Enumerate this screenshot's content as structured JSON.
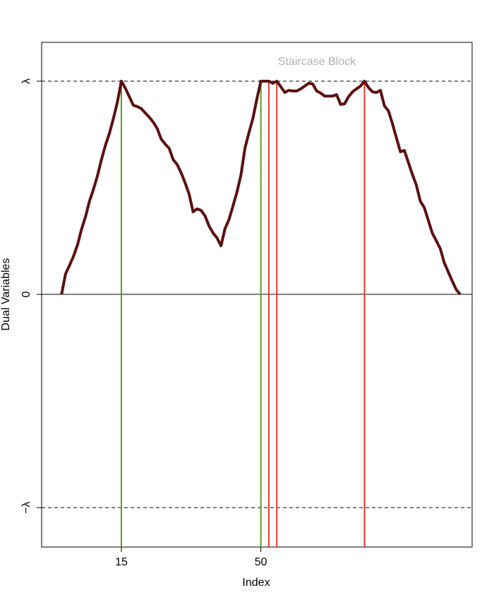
{
  "chart_data": {
    "type": "line",
    "annotation": "Staircase Block",
    "x_label": "Index",
    "y_label": "Dual Variables",
    "xlim": [
      -5,
      103
    ],
    "ylim": [
      -1.185,
      1.182
    ],
    "xticks": [
      15,
      50
    ],
    "yticks": [
      {
        "value": -1,
        "label": "−λ"
      },
      0,
      {
        "value": 1,
        "label": "λ"
      }
    ],
    "hlines": [
      {
        "y": 1,
        "style": "dashed"
      },
      {
        "y": 0,
        "style": "solid"
      },
      {
        "y": -1,
        "style": "dashed"
      }
    ],
    "vlines": [
      {
        "x": 15,
        "color": "#5a9a1e"
      },
      {
        "x": 50,
        "color": "#5a9a1e"
      },
      {
        "x": 52,
        "color": "#e8342a"
      },
      {
        "x": 54,
        "color": "#e8342a"
      },
      {
        "x": 76,
        "color": "#e8342a"
      }
    ],
    "x": [
      0,
      1,
      2,
      3,
      4,
      5,
      6,
      7,
      8,
      9,
      10,
      11,
      12,
      13,
      14,
      15,
      16,
      17,
      18,
      19,
      20,
      21,
      22,
      23,
      24,
      25,
      26,
      27,
      28,
      29,
      30,
      31,
      32,
      33,
      34,
      35,
      36,
      37,
      38,
      39,
      40,
      41,
      42,
      43,
      44,
      45,
      46,
      47,
      48,
      49,
      50,
      51,
      52,
      53,
      54,
      55,
      56,
      57,
      58,
      59,
      60,
      61,
      62,
      63,
      64,
      65,
      66,
      67,
      68,
      69,
      70,
      71,
      72,
      73,
      74,
      75,
      76,
      77,
      78,
      79,
      80,
      81,
      82,
      83,
      84,
      85,
      86,
      87,
      88,
      89,
      90,
      91,
      92,
      93,
      94,
      95,
      96,
      97,
      98,
      99,
      100
    ],
    "series": [
      {
        "color": "#5c1010",
        "values": [
          0,
          0.096,
          0.136,
          0.179,
          0.232,
          0.305,
          0.364,
          0.437,
          0.493,
          0.556,
          0.632,
          0.699,
          0.755,
          0.825,
          0.901,
          1,
          0.967,
          0.927,
          0.887,
          0.881,
          0.871,
          0.851,
          0.831,
          0.808,
          0.778,
          0.728,
          0.705,
          0.685,
          0.632,
          0.609,
          0.57,
          0.523,
          0.47,
          0.387,
          0.401,
          0.394,
          0.368,
          0.321,
          0.288,
          0.265,
          0.228,
          0.308,
          0.351,
          0.414,
          0.48,
          0.56,
          0.685,
          0.758,
          0.825,
          0.917,
          1,
          1,
          1,
          0.99,
          1,
          0.974,
          0.947,
          0.957,
          0.954,
          0.954,
          0.964,
          0.977,
          0.99,
          0.987,
          0.954,
          0.944,
          0.93,
          0.93,
          0.93,
          0.937,
          0.891,
          0.894,
          0.927,
          0.95,
          0.964,
          0.977,
          1,
          0.97,
          0.95,
          0.947,
          0.957,
          0.884,
          0.861,
          0.801,
          0.735,
          0.669,
          0.675,
          0.619,
          0.563,
          0.513,
          0.437,
          0.407,
          0.348,
          0.288,
          0.252,
          0.215,
          0.149,
          0.106,
          0.063,
          0.023,
          0
        ]
      }
    ]
  }
}
